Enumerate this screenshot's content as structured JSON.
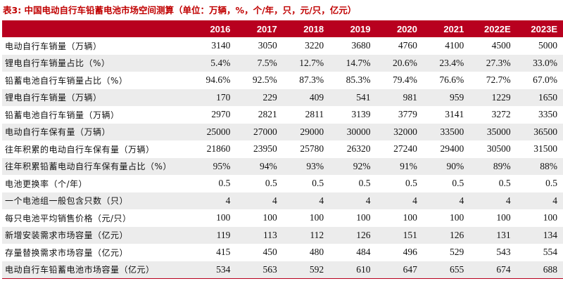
{
  "caption": "表3: 中国电动自行车铅蓄电池市场空间测算（单位：万辆，%，个/年，只，元/只，亿元）",
  "table": {
    "headers": [
      "",
      "2016",
      "2017",
      "2018",
      "2019",
      "2020",
      "2021",
      "2022E",
      "2023E"
    ],
    "rows": [
      {
        "label": "电动自行车销量（万辆）",
        "values": [
          "3140",
          "3050",
          "3220",
          "3680",
          "4760",
          "4100",
          "4500",
          "5000"
        ]
      },
      {
        "label": "锂电自行车销量占比（%）",
        "values": [
          "5.4%",
          "7.5%",
          "12.7%",
          "14.7%",
          "20.6%",
          "23.4%",
          "27.3%",
          "33.0%"
        ]
      },
      {
        "label": "铅蓄电池自行车销量占比（%）",
        "values": [
          "94.6%",
          "92.5%",
          "87.3%",
          "85.3%",
          "79.4%",
          "76.6%",
          "72.7%",
          "67.0%"
        ]
      },
      {
        "label": "锂电自行车销量（万辆）",
        "values": [
          "170",
          "229",
          "409",
          "541",
          "981",
          "959",
          "1229",
          "1650"
        ]
      },
      {
        "label": "铅蓄电池自行车销量（万辆）",
        "values": [
          "2970",
          "2821",
          "2811",
          "3139",
          "3779",
          "3141",
          "3272",
          "3350"
        ]
      },
      {
        "label": "电动自行车保有量（万辆）",
        "values": [
          "25000",
          "27000",
          "29000",
          "30000",
          "32000",
          "33500",
          "35000",
          "36500"
        ]
      },
      {
        "label": "往年积累的电动自行车保有量（万辆）",
        "values": [
          "21860",
          "23950",
          "25780",
          "26320",
          "27240",
          "29400",
          "30500",
          "31500"
        ]
      },
      {
        "label": "往年积累铅蓄电动自行车保有量占比（%）",
        "values": [
          "95%",
          "94%",
          "93%",
          "92%",
          "91%",
          "90%",
          "89%",
          "88%"
        ]
      },
      {
        "label": "电池更换率（个/年）",
        "values": [
          "0.5",
          "0.5",
          "0.5",
          "0.5",
          "0.5",
          "0.5",
          "0.5",
          "0.5"
        ]
      },
      {
        "label": "一个电池组一般包含只数（只）",
        "values": [
          "4",
          "4",
          "4",
          "4",
          "4",
          "4",
          "4",
          "4"
        ]
      },
      {
        "label": "每只电池平均销售价格（元/只）",
        "values": [
          "100",
          "100",
          "100",
          "100",
          "100",
          "100",
          "100",
          "100"
        ]
      },
      {
        "label": "新增安装需求市场容量（亿元）",
        "values": [
          "119",
          "113",
          "112",
          "126",
          "151",
          "126",
          "131",
          "134"
        ]
      },
      {
        "label": "存量替换需求市场容量（亿元）",
        "values": [
          "415",
          "450",
          "480",
          "484",
          "496",
          "529",
          "543",
          "554"
        ]
      },
      {
        "label": "电动自行车铅蓄电池市场容量（亿元）",
        "values": [
          "534",
          "563",
          "592",
          "610",
          "647",
          "655",
          "674",
          "688"
        ]
      }
    ]
  }
}
